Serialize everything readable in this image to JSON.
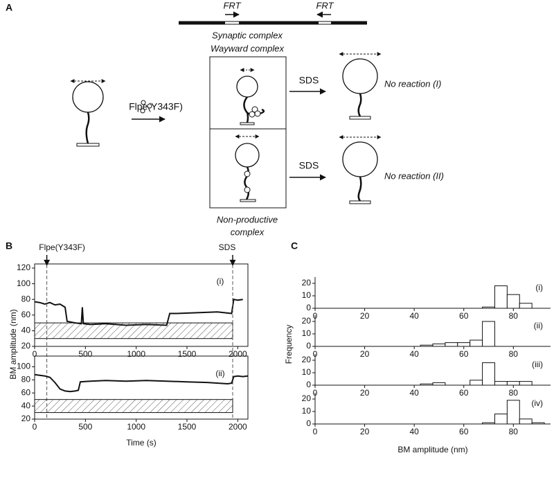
{
  "figure": {
    "panel_labels": [
      "A",
      "B",
      "C"
    ],
    "frt": [
      "FRT",
      "FRT"
    ],
    "enzyme": "Flpe(Y343F)",
    "complex_top": [
      "Synaptic complex",
      "Wayward complex"
    ],
    "complex_bottom": [
      "Non-productive",
      "complex"
    ],
    "treatment": [
      "SDS",
      "SDS"
    ],
    "outcomes": [
      "No reaction  (I)",
      "No reaction  (II)"
    ]
  },
  "chart_data": [
    {
      "type": "line",
      "label": "(i)",
      "ylabel": "BM amplitude (nm)",
      "color": "#111111",
      "x": [
        0,
        50,
        100,
        150,
        200,
        250,
        300,
        320,
        400,
        460,
        470,
        480,
        550,
        700,
        900,
        1100,
        1300,
        1330,
        1400,
        1600,
        1800,
        1940,
        1960,
        2000,
        2050
      ],
      "values": [
        77,
        76,
        74,
        76,
        73,
        74,
        70,
        52,
        50,
        49,
        70,
        49,
        48,
        49,
        47,
        48,
        47,
        62,
        62,
        63,
        64,
        62,
        80,
        79,
        80
      ],
      "xlim": [
        0,
        2100
      ],
      "xticks": [
        0,
        500,
        1000,
        1500,
        2000
      ],
      "ylim": [
        20,
        120
      ],
      "yticks": [
        20,
        40,
        60,
        80,
        100,
        120
      ],
      "reference_band": {
        "x": [
          0,
          1950
        ],
        "y": [
          30,
          50
        ]
      },
      "annotations": [
        {
          "text": "Flpe(Y343F)",
          "x": 120
        },
        {
          "text": "SDS",
          "x": 1950
        }
      ]
    },
    {
      "type": "line",
      "label": "(ii)",
      "xlabel": "Time (s)",
      "color": "#111111",
      "x": [
        0,
        50,
        100,
        150,
        200,
        250,
        300,
        350,
        400,
        430,
        450,
        550,
        700,
        900,
        1100,
        1300,
        1500,
        1700,
        1900,
        1940,
        1960,
        2000,
        2050,
        2100
      ],
      "values": [
        88,
        87,
        86,
        84,
        76,
        66,
        63,
        62,
        63,
        64,
        77,
        78,
        79,
        78,
        79,
        78,
        77,
        76,
        74,
        75,
        85,
        86,
        85,
        86
      ],
      "xlim": [
        0,
        2100
      ],
      "xticks": [
        0,
        500,
        1000,
        1500,
        2000
      ],
      "ylim": [
        20,
        110
      ],
      "yticks": [
        20,
        40,
        60,
        80,
        100
      ],
      "reference_band": {
        "x": [
          0,
          1950
        ],
        "y": [
          30,
          50
        ]
      }
    },
    {
      "type": "histogram",
      "label": "(i)",
      "ylabel": "Frequency",
      "color": "#ffffff",
      "bins": [
        37.5,
        42.5,
        47.5,
        52.5,
        57.5,
        62.5,
        67.5,
        72.5,
        77.5,
        82.5,
        87.5,
        92.5,
        97.5
      ],
      "values": [
        0,
        0,
        0,
        0,
        0,
        0,
        1,
        18,
        11,
        4,
        0,
        0
      ],
      "xlim": [
        0,
        95
      ],
      "xticks": [
        0,
        20,
        40,
        60,
        80
      ],
      "ylim": [
        0,
        25
      ],
      "yticks": [
        0,
        10,
        20
      ]
    },
    {
      "type": "histogram",
      "label": "(ii)",
      "color": "#ffffff",
      "bins": [
        37.5,
        42.5,
        47.5,
        52.5,
        57.5,
        62.5,
        67.5,
        72.5,
        77.5,
        82.5,
        87.5,
        92.5,
        97.5
      ],
      "values": [
        0,
        1,
        2,
        3,
        3,
        5,
        20,
        0,
        0,
        0,
        0,
        0
      ],
      "xlim": [
        0,
        95
      ],
      "xticks": [
        0,
        20,
        40,
        60,
        80
      ],
      "ylim": [
        0,
        25
      ],
      "yticks": [
        0,
        10,
        20
      ]
    },
    {
      "type": "histogram",
      "label": "(iii)",
      "color": "#ffffff",
      "bins": [
        37.5,
        42.5,
        47.5,
        52.5,
        57.5,
        62.5,
        67.5,
        72.5,
        77.5,
        82.5,
        87.5,
        92.5,
        97.5
      ],
      "values": [
        0,
        1,
        2,
        0,
        0,
        4,
        18,
        3,
        3,
        3,
        0,
        0
      ],
      "xlim": [
        0,
        95
      ],
      "xticks": [
        0,
        20,
        40,
        60,
        80
      ],
      "ylim": [
        0,
        25
      ],
      "yticks": [
        0,
        10,
        20
      ]
    },
    {
      "type": "histogram",
      "label": "(iv)",
      "xlabel": "BM amplitude (nm)",
      "color": "#ffffff",
      "bins": [
        37.5,
        42.5,
        47.5,
        52.5,
        57.5,
        62.5,
        67.5,
        72.5,
        77.5,
        82.5,
        87.5,
        92.5,
        97.5
      ],
      "values": [
        0,
        0,
        0,
        0,
        0,
        0,
        1,
        8,
        19,
        4,
        1,
        0
      ],
      "xlim": [
        0,
        95
      ],
      "xticks": [
        0,
        20,
        40,
        60,
        80
      ],
      "ylim": [
        0,
        25
      ],
      "yticks": [
        0,
        10,
        20
      ]
    }
  ]
}
